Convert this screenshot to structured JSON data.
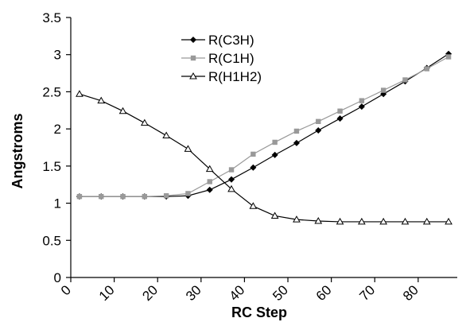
{
  "chart_data": {
    "type": "line",
    "xlabel": "RC Step",
    "ylabel": "Angstroms",
    "xlim": [
      0,
      89
    ],
    "ylim": [
      0,
      3.5
    ],
    "x_ticks": [
      "0",
      "10",
      "20",
      "30",
      "40",
      "50",
      "60",
      "70",
      "80"
    ],
    "y_ticks": [
      "0",
      "0.5",
      "1",
      "1.5",
      "2",
      "2.5",
      "3",
      "3.5"
    ],
    "grid": false,
    "legend_position": "top-center",
    "x": [
      2,
      7,
      12,
      17,
      22,
      27,
      32,
      37,
      42,
      47,
      52,
      57,
      62,
      67,
      72,
      77,
      82,
      87
    ],
    "series": [
      {
        "name": "R(C3H)",
        "marker": "diamond",
        "color": "#000000",
        "values": [
          1.09,
          1.09,
          1.09,
          1.09,
          1.09,
          1.1,
          1.18,
          1.32,
          1.48,
          1.65,
          1.81,
          1.98,
          2.14,
          2.3,
          2.47,
          2.64,
          2.82,
          3.01
        ]
      },
      {
        "name": "R(C1H)",
        "marker": "square",
        "color": "#999999",
        "values": [
          1.09,
          1.09,
          1.09,
          1.09,
          1.1,
          1.13,
          1.29,
          1.45,
          1.66,
          1.82,
          1.97,
          2.1,
          2.24,
          2.38,
          2.52,
          2.66,
          2.81,
          2.97
        ]
      },
      {
        "name": "R(H1H2)",
        "marker": "triangle",
        "color": "#000000",
        "values": [
          2.47,
          2.38,
          2.24,
          2.08,
          1.91,
          1.73,
          1.46,
          1.19,
          0.96,
          0.83,
          0.78,
          0.76,
          0.75,
          0.75,
          0.75,
          0.75,
          0.75,
          0.75
        ]
      }
    ]
  }
}
